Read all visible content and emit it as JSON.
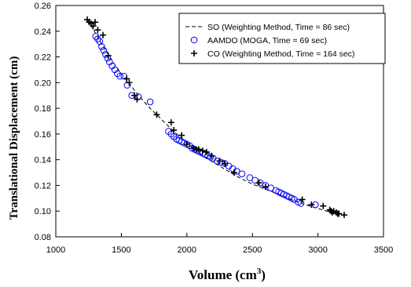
{
  "chart_data": {
    "type": "scatter",
    "ylabel": "Translational Displacement (cm)",
    "xlabel_main": "Volume (cm",
    "xlabel_sup": "3",
    "xlabel_close": ")",
    "xlim": [
      1000,
      3500
    ],
    "ylim": [
      0.08,
      0.26
    ],
    "xticks": [
      "1000",
      "1500",
      "2000",
      "2500",
      "3000",
      "3500"
    ],
    "yticks": [
      "0.08",
      "0.10",
      "0.12",
      "0.14",
      "0.16",
      "0.18",
      "0.20",
      "0.22",
      "0.24",
      "0.26"
    ],
    "legend_position": "top-right",
    "grid": false,
    "series": [
      {
        "name": "SO (Weighting Method, Time = 86 sec)",
        "marker": "dashed-line",
        "color": "#000000",
        "x": [
          1240,
          1300,
          1350,
          1400,
          1450,
          1500,
          1550,
          1600,
          1650,
          1700,
          1800,
          1900,
          2000,
          2100,
          2200,
          2300,
          2400,
          2500,
          2600,
          2700,
          2800,
          2900,
          3000,
          3100,
          3200
        ],
        "y": [
          0.249,
          0.239,
          0.23,
          0.222,
          0.214,
          0.207,
          0.201,
          0.194,
          0.188,
          0.182,
          0.172,
          0.162,
          0.153,
          0.145,
          0.138,
          0.132,
          0.126,
          0.121,
          0.117,
          0.113,
          0.109,
          0.105,
          0.102,
          0.099,
          0.097
        ]
      },
      {
        "name": "AAMDO (MOGA, Time = 69 sec)",
        "marker": "open-circle",
        "color": "#0000ff",
        "x": [
          1305,
          1320,
          1335,
          1350,
          1365,
          1380,
          1395,
          1410,
          1430,
          1450,
          1470,
          1490,
          1520,
          1545,
          1580,
          1630,
          1720,
          1860,
          1880,
          1900,
          1920,
          1940,
          1960,
          1980,
          2000,
          2020,
          2040,
          2060,
          2080,
          2100,
          2120,
          2140,
          2160,
          2180,
          2200,
          2230,
          2260,
          2290,
          2320,
          2350,
          2380,
          2420,
          2480,
          2520,
          2560,
          2600,
          2640,
          2680,
          2700,
          2720,
          2740,
          2760,
          2780,
          2800,
          2820,
          2850,
          2870,
          2980
        ],
        "y": [
          0.236,
          0.234,
          0.232,
          0.228,
          0.225,
          0.222,
          0.219,
          0.216,
          0.213,
          0.21,
          0.207,
          0.205,
          0.205,
          0.198,
          0.19,
          0.189,
          0.185,
          0.162,
          0.16,
          0.158,
          0.156,
          0.155,
          0.154,
          0.153,
          0.152,
          0.151,
          0.149,
          0.148,
          0.147,
          0.146,
          0.145,
          0.144,
          0.143,
          0.142,
          0.141,
          0.139,
          0.138,
          0.137,
          0.135,
          0.133,
          0.131,
          0.129,
          0.126,
          0.124,
          0.122,
          0.12,
          0.118,
          0.116,
          0.115,
          0.114,
          0.113,
          0.112,
          0.111,
          0.11,
          0.109,
          0.107,
          0.106,
          0.105
        ]
      },
      {
        "name": "CO (Weighting Method, Time = 164 sec)",
        "marker": "plus",
        "color": "#000000",
        "x": [
          1240,
          1255,
          1270,
          1285,
          1300,
          1320,
          1360,
          1400,
          1540,
          1560,
          1600,
          1620,
          1770,
          1880,
          1900,
          1960,
          2000,
          2050,
          2070,
          2090,
          2120,
          2150,
          2190,
          2250,
          2290,
          2360,
          2550,
          2600,
          2880,
          2950,
          3040,
          3090,
          3100,
          3110,
          3120,
          3140,
          3150,
          3160,
          3200
        ],
        "y": [
          0.249,
          0.247,
          0.246,
          0.244,
          0.247,
          0.241,
          0.237,
          0.221,
          0.203,
          0.2,
          0.19,
          0.187,
          0.175,
          0.169,
          0.163,
          0.159,
          0.152,
          0.149,
          0.148,
          0.148,
          0.147,
          0.146,
          0.143,
          0.139,
          0.137,
          0.13,
          0.122,
          0.119,
          0.109,
          0.105,
          0.104,
          0.101,
          0.1,
          0.099,
          0.1,
          0.099,
          0.098,
          0.098,
          0.097
        ]
      }
    ]
  }
}
